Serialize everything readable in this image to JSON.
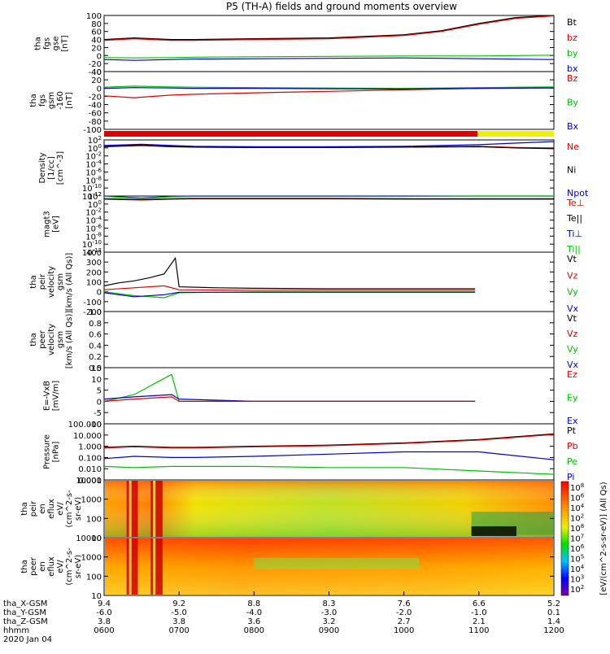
{
  "title": "P5 (TH-A) fields and ground moments overview",
  "colors": {
    "black": "#000000",
    "red": "#e00000",
    "green": "#00c000",
    "blue": "#0000d0",
    "yellow": "#f0f000"
  },
  "chart_data": [
    {
      "type": "line",
      "name": "fgs-gse",
      "ylabel_lines": [
        "tha",
        "fgs",
        "gse",
        "[nT]"
      ],
      "ylim": [
        -40,
        100
      ],
      "ticks": [
        100,
        80,
        60,
        40,
        20,
        0,
        -20,
        -40
      ],
      "legend": [
        {
          "label": "Bt",
          "color": "#000000"
        },
        {
          "label": "bz",
          "color": "#e00000"
        },
        {
          "label": "by",
          "color": "#00c000"
        },
        {
          "label": "bx",
          "color": "#0000d0"
        }
      ],
      "series": [
        {
          "name": "Bt",
          "color": "#000000",
          "x": [
            6.0,
            6.4,
            6.9,
            7.2,
            8.0,
            9.0,
            10.0,
            10.5,
            11.0,
            11.5,
            12.0
          ],
          "y": [
            40,
            44,
            40,
            40,
            42,
            44,
            52,
            62,
            80,
            95,
            100
          ]
        },
        {
          "name": "bz",
          "color": "#e00000",
          "x": [
            6.0,
            6.4,
            6.9,
            7.2,
            8.0,
            9.0,
            10.0,
            10.5,
            11.0,
            11.5,
            12.0
          ],
          "y": [
            38,
            42,
            38,
            38,
            40,
            42,
            50,
            60,
            78,
            93,
            99
          ]
        },
        {
          "name": "by",
          "color": "#00c000",
          "x": [
            6.0,
            6.4,
            6.9,
            7.2,
            8.0,
            9.0,
            10.0,
            11.0,
            12.0
          ],
          "y": [
            -5,
            -6,
            -5,
            -4,
            -3,
            -2,
            -1,
            -1,
            1
          ]
        },
        {
          "name": "bx",
          "color": "#0000d0",
          "x": [
            6.0,
            6.4,
            6.9,
            7.2,
            8.0,
            9.0,
            10.0,
            11.0,
            12.0
          ],
          "y": [
            -10,
            -12,
            -10,
            -9,
            -8,
            -7,
            -6,
            -8,
            -10
          ]
        }
      ]
    },
    {
      "type": "line",
      "name": "fgs-gsm",
      "ylabel_lines": [
        "tha",
        "fgs",
        "gsm",
        "-160",
        "[nT]"
      ],
      "ylim": [
        -110,
        45
      ],
      "ticks": [
        40,
        20,
        0,
        -20,
        -40,
        -60,
        -80,
        -100
      ],
      "legend": [
        {
          "label": "Bz",
          "color": "#e00000"
        },
        {
          "label": "By",
          "color": "#00c000"
        },
        {
          "label": "Bx",
          "color": "#0000d0"
        }
      ],
      "series": [
        {
          "name": "Bz",
          "color": "#e00000",
          "x": [
            6.0,
            6.4,
            6.9,
            7.2,
            8.0,
            9.0,
            10.0,
            11.0,
            12.0
          ],
          "y": [
            -20,
            -25,
            -18,
            -16,
            -12,
            -8,
            -4,
            0,
            3
          ]
        },
        {
          "name": "By",
          "color": "#00c000",
          "x": [
            6.0,
            6.4,
            6.9,
            7.2,
            8.0,
            9.0,
            10.0,
            11.0,
            12.0
          ],
          "y": [
            3,
            6,
            4,
            3,
            2,
            1,
            0,
            2,
            4
          ]
        },
        {
          "name": "Bx",
          "color": "#0000d0",
          "x": [
            6.0,
            6.4,
            6.9,
            7.2,
            8.0,
            9.0,
            10.0,
            11.0,
            12.0
          ],
          "y": [
            0,
            2,
            1,
            0,
            0,
            -1,
            -2,
            0,
            1
          ]
        }
      ]
    },
    {
      "type": "line",
      "name": "density",
      "ylabel_lines": [
        "Density",
        "[1/cc]",
        "[cm^-3]"
      ],
      "ylim": [
        -12,
        2
      ],
      "ticks": [
        "10^2",
        "10^0",
        "10^-2",
        "10^-4",
        "10^-6",
        "10^-8",
        "10^-10",
        "10^-12"
      ],
      "legend": [
        {
          "label": "Ne",
          "color": "#e00000"
        },
        {
          "label": "Ni",
          "color": "#000000"
        },
        {
          "label": "Npot",
          "color": "#0000d0"
        }
      ],
      "series": [
        {
          "name": "Ne",
          "color": "#e00000",
          "x": [
            6.0,
            6.5,
            6.9,
            7.2,
            8.0,
            9.0,
            10.0,
            11.0,
            11.5,
            12.0
          ],
          "y": [
            0.5,
            0.8,
            0.5,
            0.3,
            0.2,
            0.2,
            0.3,
            0.4,
            0.1,
            0.0
          ]
        },
        {
          "name": "Ni",
          "color": "#000000",
          "x": [
            6.0,
            6.5,
            6.9,
            7.2,
            8.0,
            9.0,
            10.0,
            11.0,
            11.5,
            12.0
          ],
          "y": [
            0.3,
            0.6,
            0.3,
            0.2,
            0.1,
            0.1,
            0.2,
            0.3,
            0.0,
            -0.2
          ]
        },
        {
          "name": "Npot",
          "color": "#0000d0",
          "x": [
            6.0,
            6.5,
            6.9,
            7.2,
            8.0,
            9.0,
            10.0,
            11.0,
            11.5,
            12.0
          ],
          "y": [
            0.6,
            0.9,
            0.6,
            0.4,
            0.3,
            0.3,
            0.4,
            0.8,
            1.2,
            1.6
          ]
        }
      ]
    },
    {
      "type": "line",
      "name": "temperature",
      "ylabel_lines": [
        "magt3",
        "[eV]"
      ],
      "ylim": [
        -12,
        2
      ],
      "ticks": [
        "10^2",
        "10^0",
        "10^-2",
        "10^-4",
        "10^-6",
        "10^-8",
        "10^-10",
        "10^-12"
      ],
      "legend": [
        {
          "label": "Te⊥",
          "color": "#e00000"
        },
        {
          "label": "Te||",
          "color": "#000000"
        },
        {
          "label": "Ti⊥",
          "color": "#0000d0"
        },
        {
          "label": "Ti||",
          "color": "#00c000"
        }
      ],
      "series": [
        {
          "name": "Ti",
          "color": "#0000d0",
          "x": [
            6.0,
            6.5,
            6.9,
            7.2,
            8.0,
            9.0,
            10.0,
            11.0,
            12.0
          ],
          "y": [
            2.0,
            1.5,
            1.9,
            2.0,
            2.0,
            2.0,
            2.0,
            2.1,
            2.1
          ]
        },
        {
          "name": "Ti||",
          "color": "#00c000",
          "x": [
            6.0,
            6.5,
            6.9,
            7.2,
            8.0,
            9.0,
            10.0,
            11.0,
            12.0
          ],
          "y": [
            1.9,
            1.4,
            1.8,
            1.9,
            1.9,
            1.9,
            1.9,
            2.0,
            2.0
          ]
        },
        {
          "name": "Te",
          "color": "#e00000",
          "x": [
            6.0,
            6.5,
            6.9,
            7.2,
            8.0,
            9.0,
            10.0,
            11.0,
            12.0
          ],
          "y": [
            1.2,
            1.0,
            1.2,
            1.3,
            1.3,
            1.3,
            1.2,
            1.2,
            1.2
          ]
        },
        {
          "name": "Te||",
          "color": "#000000",
          "x": [
            6.0,
            6.5,
            6.9,
            7.2,
            8.0,
            9.0,
            10.0,
            11.0,
            12.0
          ],
          "y": [
            1.3,
            1.1,
            1.3,
            1.4,
            1.4,
            1.4,
            1.3,
            1.3,
            1.3
          ]
        }
      ]
    },
    {
      "type": "line",
      "name": "peir-velocity",
      "ylabel_lines": [
        "tha",
        "peir",
        "velocity",
        "gsm",
        "[km/s (All Qs)]"
      ],
      "ylim": [
        -200,
        400
      ],
      "ticks": [
        400,
        300,
        200,
        100,
        0,
        -100,
        -200
      ],
      "legend": [
        {
          "label": "Vt",
          "color": "#000000"
        },
        {
          "label": "Vz",
          "color": "#e00000"
        },
        {
          "label": "Vy",
          "color": "#00c000"
        },
        {
          "label": "Vx",
          "color": "#0000d0"
        }
      ],
      "series": [
        {
          "name": "Vt",
          "color": "#000000",
          "x": [
            6.0,
            6.2,
            6.4,
            6.6,
            6.8,
            6.95,
            7.0,
            7.5,
            8.0,
            9.0,
            10.0,
            10.95
          ],
          "y": [
            60,
            90,
            110,
            140,
            180,
            340,
            50,
            40,
            35,
            30,
            30,
            30
          ]
        },
        {
          "name": "Vz",
          "color": "#e00000",
          "x": [
            6.0,
            6.4,
            6.8,
            7.0,
            8.0,
            9.0,
            10.0,
            10.95
          ],
          "y": [
            20,
            40,
            60,
            20,
            15,
            15,
            15,
            15
          ]
        },
        {
          "name": "Vy",
          "color": "#00c000",
          "x": [
            6.0,
            6.4,
            6.8,
            7.0,
            8.0,
            9.0,
            10.0,
            10.95
          ],
          "y": [
            0,
            -40,
            -60,
            -10,
            0,
            0,
            0,
            0
          ]
        },
        {
          "name": "Vx",
          "color": "#0000d0",
          "x": [
            6.0,
            6.4,
            6.8,
            7.0,
            8.0,
            9.0,
            10.0,
            10.95
          ],
          "y": [
            -10,
            -50,
            -30,
            -5,
            -5,
            -5,
            -5,
            -5
          ]
        }
      ]
    },
    {
      "type": "line",
      "name": "peer-velocity",
      "ylabel_lines": [
        "tha",
        "peer",
        "velocity",
        "gsm",
        "[km/s (All Qs)]"
      ],
      "ylim": [
        0.0,
        1.0
      ],
      "ticks": [
        "1.0",
        "0.8",
        "0.6",
        "0.4",
        "0.2",
        "0.0"
      ],
      "legend": [
        {
          "label": "Vt",
          "color": "#000000"
        },
        {
          "label": "Vz",
          "color": "#e00000"
        },
        {
          "label": "Vy",
          "color": "#00c000"
        },
        {
          "label": "Vx",
          "color": "#0000d0"
        }
      ],
      "series": []
    },
    {
      "type": "line",
      "name": "efield",
      "ylabel_lines": [
        "E=-VxB",
        "[mV/m]"
      ],
      "ylim": [
        -10,
        15
      ],
      "ticks": [
        15,
        10,
        5,
        0,
        -5,
        -10
      ],
      "legend": [
        {
          "label": "Ez",
          "color": "#e00000"
        },
        {
          "label": "Ey",
          "color": "#00c000"
        },
        {
          "label": "Ex",
          "color": "#0000d0"
        }
      ],
      "series": [
        {
          "name": "Ey",
          "color": "#00c000",
          "x": [
            6.0,
            6.4,
            6.9,
            7.0,
            8.0,
            9.0,
            10.0,
            10.95
          ],
          "y": [
            0,
            3,
            12,
            0,
            0,
            0,
            0,
            0
          ]
        },
        {
          "name": "Ex",
          "color": "#0000d0",
          "x": [
            6.0,
            6.4,
            6.9,
            7.0,
            8.0,
            9.0,
            10.0,
            10.95
          ],
          "y": [
            1,
            2,
            3,
            1,
            0,
            0,
            0,
            0
          ]
        },
        {
          "name": "Ez",
          "color": "#e00000",
          "x": [
            6.0,
            6.4,
            6.9,
            7.0,
            8.0,
            9.0,
            10.0,
            10.95
          ],
          "y": [
            0,
            1,
            2,
            0,
            0,
            0,
            0,
            0
          ]
        }
      ]
    },
    {
      "type": "line",
      "name": "pressure",
      "ylabel_lines": [
        "Pressure",
        "[nPa]"
      ],
      "ylim": [
        -3,
        2
      ],
      "ticks": [
        "100.000",
        "10.000",
        "1.000",
        "0.100",
        "0.010",
        "0.001"
      ],
      "legend": [
        {
          "label": "Pt",
          "color": "#000000"
        },
        {
          "label": "Pb",
          "color": "#e00000"
        },
        {
          "label": "Pe",
          "color": "#00c000"
        },
        {
          "label": "Pi",
          "color": "#0000d0"
        }
      ],
      "series": [
        {
          "name": "Pt",
          "color": "#000000",
          "x": [
            6.0,
            6.4,
            6.9,
            7.2,
            8.0,
            9.0,
            10.0,
            11.0,
            12.0
          ],
          "y": [
            -0.1,
            0.0,
            -0.1,
            -0.1,
            0.0,
            0.1,
            0.3,
            0.6,
            1.1
          ]
        },
        {
          "name": "Pb",
          "color": "#e00000",
          "x": [
            6.0,
            6.4,
            6.9,
            7.2,
            8.0,
            9.0,
            10.0,
            11.0,
            12.0
          ],
          "y": [
            -0.15,
            -0.05,
            -0.15,
            -0.15,
            -0.05,
            0.05,
            0.25,
            0.55,
            1.05
          ]
        },
        {
          "name": "Pi",
          "color": "#0000d0",
          "x": [
            6.0,
            6.4,
            6.9,
            7.2,
            8.0,
            9.0,
            10.0,
            11.0,
            12.0
          ],
          "y": [
            -1.1,
            -0.9,
            -1.0,
            -1.0,
            -0.9,
            -0.7,
            -0.5,
            -0.5,
            -1.2
          ]
        },
        {
          "name": "Pe",
          "color": "#00c000",
          "x": [
            6.0,
            6.4,
            6.9,
            7.2,
            8.0,
            9.0,
            10.0,
            11.0,
            12.0
          ],
          "y": [
            -1.8,
            -1.9,
            -1.8,
            -1.8,
            -1.8,
            -1.9,
            -1.9,
            -2.2,
            -2.5
          ]
        }
      ]
    },
    {
      "type": "heatmap",
      "name": "peir-eflux",
      "ylabel_lines": [
        "tha",
        "peir",
        "en",
        "eflux",
        "eV/",
        "(cm^2-s-",
        "sr-eV)"
      ],
      "ylim": [
        "10",
        "10000"
      ],
      "ticks": [
        "10000",
        "1000",
        "100",
        "10"
      ]
    },
    {
      "type": "heatmap",
      "name": "peer-eflux",
      "ylabel_lines": [
        "tha",
        "peer",
        "en",
        "eflux",
        "eV/",
        "(cm^2-s-",
        "sr-eV)"
      ],
      "ylim": [
        "10",
        "10000"
      ],
      "ticks": [
        "10000",
        "1000",
        "100",
        "10"
      ]
    }
  ],
  "colorbar": {
    "label": "[eV/(cm^2-s-sr-eV)] (All Qs)",
    "ticks": [
      "10^8",
      "10^6",
      "10^4",
      "10^2",
      "10^8",
      "10^7",
      "10^6",
      "10^5",
      "10^4",
      "10^3",
      "10^2"
    ]
  },
  "xaxis": {
    "range_hours": [
      6.0,
      12.0
    ],
    "rows": [
      {
        "label": "tha_X-GSM",
        "values": [
          "9.4",
          "9.2",
          "8.8",
          "8.3",
          "7.6",
          "6.6",
          "5.2"
        ]
      },
      {
        "label": "tha_Y-GSM",
        "values": [
          "-6.0",
          "-5.0",
          "-4.0",
          "-3.0",
          "-2.0",
          "-1.0",
          "0.1"
        ]
      },
      {
        "label": "tha_Z-GSM",
        "values": [
          "3.8",
          "3.8",
          "3.6",
          "3.2",
          "2.7",
          "2.1",
          "1.4"
        ]
      },
      {
        "label": "hhmm",
        "values": [
          "0600",
          "0700",
          "0800",
          "0900",
          "1000",
          "1100",
          "1200"
        ]
      }
    ],
    "date": "2020 Jan 04"
  }
}
